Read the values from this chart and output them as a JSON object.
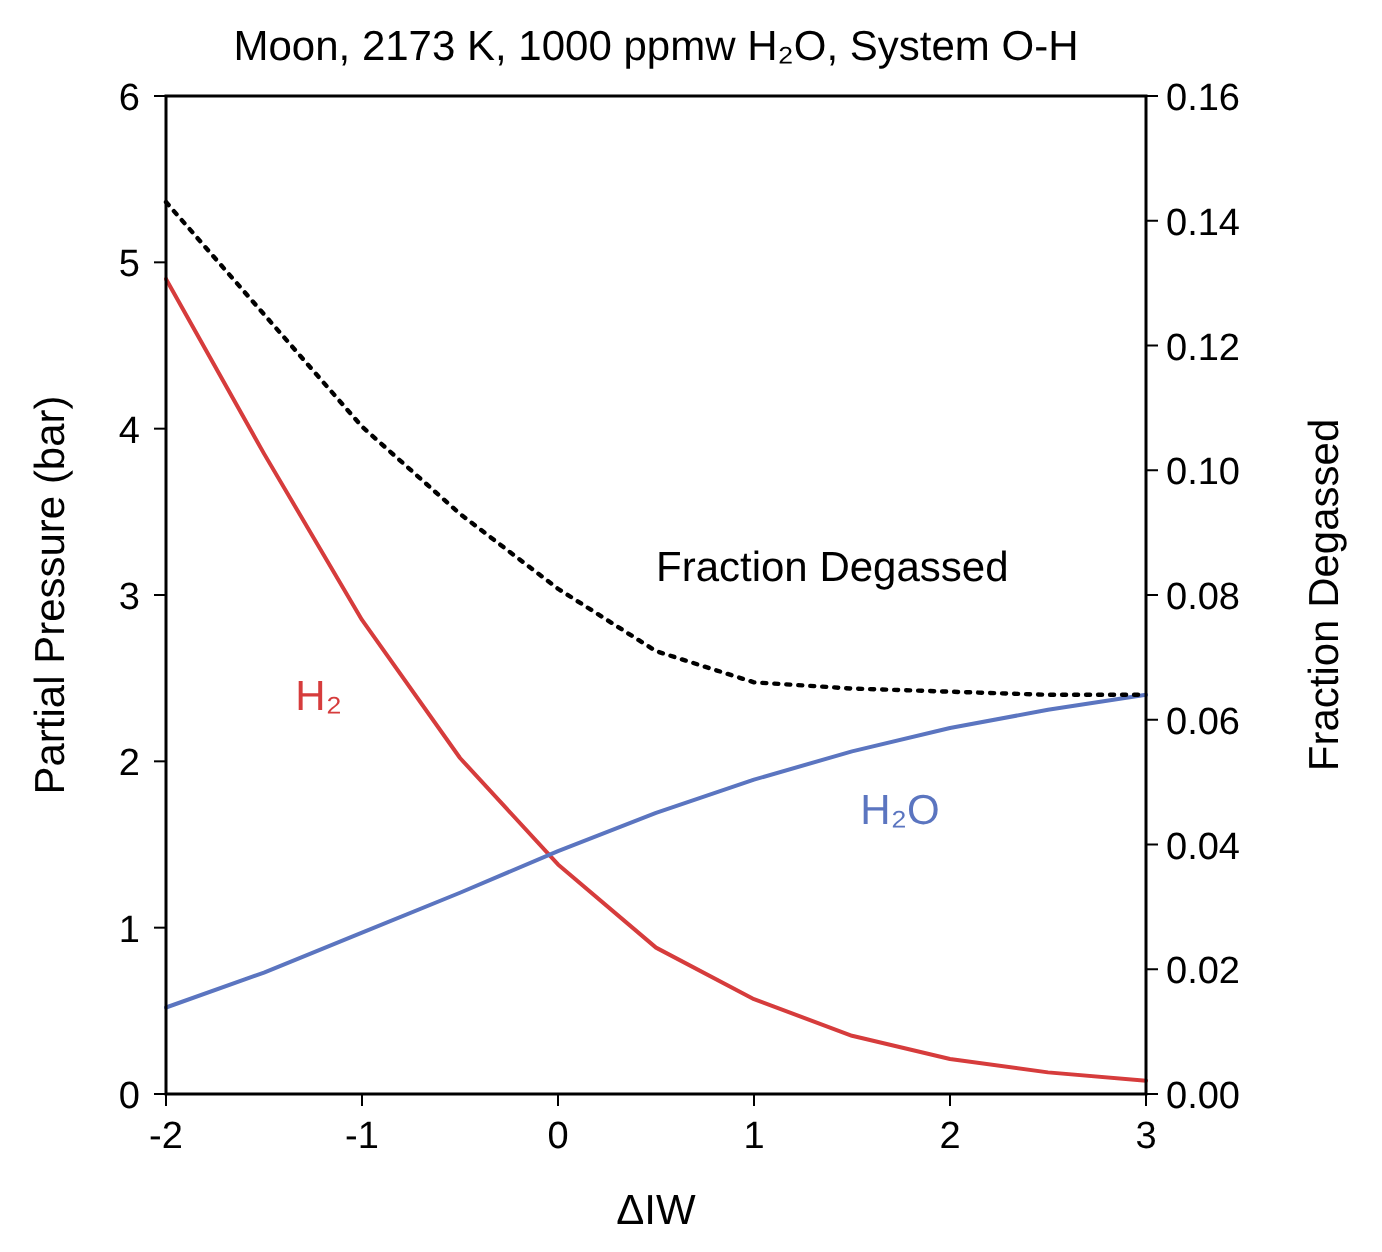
{
  "chart_data": {
    "type": "line",
    "title": "Moon, 2173 K, 1000 ppmw H₂O, System O-H",
    "xlabel": "ΔIW",
    "ylabel": "Partial Pressure (bar)",
    "y2label": "Fraction Degassed",
    "x": [
      -2,
      -1.5,
      -1,
      -0.5,
      0,
      0.5,
      1,
      1.5,
      2,
      2.5,
      3
    ],
    "series": [
      {
        "name": "H₂",
        "color": "#d63c3c",
        "values": [
          4.9,
          3.85,
          2.85,
          2.02,
          1.38,
          0.88,
          0.57,
          0.35,
          0.21,
          0.13,
          0.08
        ]
      },
      {
        "name": "H₂O",
        "color": "#5b75c0",
        "values": [
          0.52,
          0.73,
          0.97,
          1.21,
          1.46,
          1.69,
          1.89,
          2.06,
          2.2,
          2.31,
          2.4
        ]
      },
      {
        "name": "Fraction Degassed",
        "color": "#000000",
        "axis": "y2",
        "line_style": "dotted",
        "values": [
          0.143,
          0.125,
          0.107,
          0.093,
          0.081,
          0.071,
          0.066,
          0.065,
          0.0645,
          0.064,
          0.064
        ]
      }
    ],
    "xlim": [
      -2,
      3
    ],
    "xticks": [
      -2,
      -1,
      0,
      1,
      2,
      3
    ],
    "ylim": [
      0,
      6
    ],
    "yticks": [
      0,
      1,
      2,
      3,
      4,
      5,
      6
    ],
    "y2lim": [
      0,
      0.16
    ],
    "y2ticks": [
      {
        "value": 0,
        "label": "0.00"
      },
      {
        "value": 0.02,
        "label": "0.02"
      },
      {
        "value": 0.04,
        "label": "0.04"
      },
      {
        "value": 0.06,
        "label": "0.06"
      },
      {
        "value": 0.08,
        "label": "0.08"
      },
      {
        "value": 0.1,
        "label": "0.10"
      },
      {
        "value": 0.12,
        "label": "0.12"
      },
      {
        "value": 0.14,
        "label": "0.14"
      },
      {
        "value": 0.16,
        "label": "0.16"
      }
    ],
    "grid": false,
    "marker": "none"
  }
}
